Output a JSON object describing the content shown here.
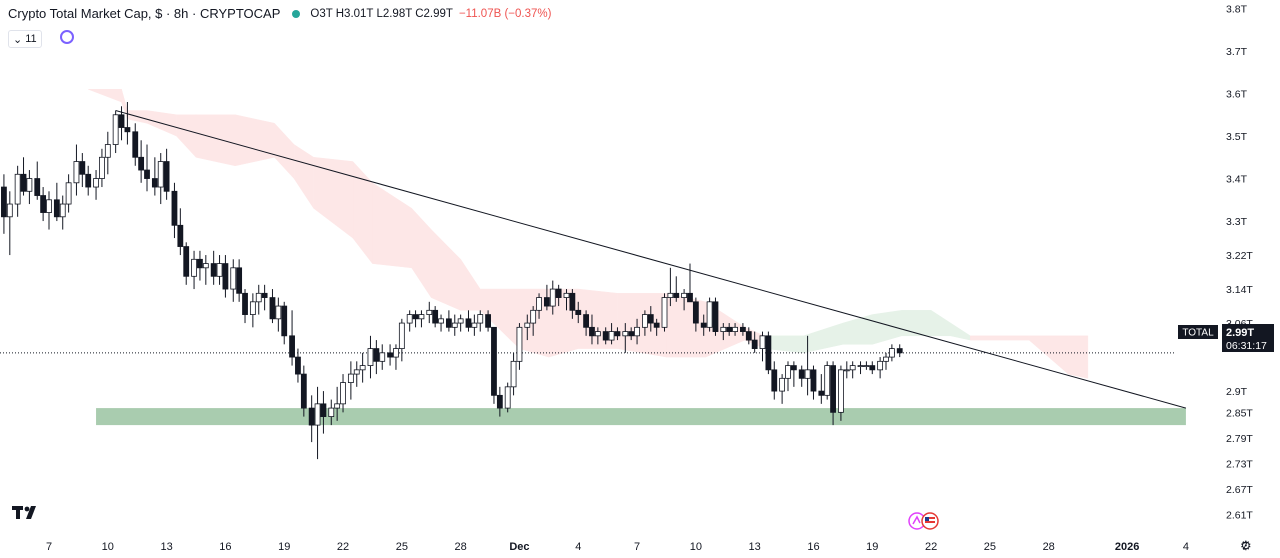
{
  "header": {
    "title": "Crypto Total Market Cap, $ · 8h · CRYPTOCAP",
    "ohlc": "O3T H3.01T L2.98T C2.99T",
    "change": "−11.07B (−0.37%)",
    "indicator_count": "11"
  },
  "price_box": {
    "symbol": "TOTAL",
    "price": "2.99T",
    "countdown": "06:31:17"
  },
  "icons": {
    "sync": "sync-circle-icon",
    "chevron": "chevron-down-icon",
    "logo": "tradingview-logo-icon",
    "settings": "gear-icon",
    "events": "flag-event-icon"
  },
  "colors": {
    "up": "#ffffff",
    "down": "#131722",
    "cloud_bear": "#fde7e7",
    "cloud_bull": "#e6f2e8",
    "support_zone": "#a9ccaf",
    "trendline": "#131722"
  },
  "chart_data": {
    "type": "candlestick",
    "title": "Crypto Total Market Cap",
    "ylabel": "",
    "xlabel": "",
    "y_ticks": [
      "3.8T",
      "3.7T",
      "3.6T",
      "3.5T",
      "3.4T",
      "3.3T",
      "3.22T",
      "3.14T",
      "3.06T",
      "2.9T",
      "2.85T",
      "2.79T",
      "2.73T",
      "2.67T",
      "2.61T"
    ],
    "y_tick_values": [
      3.8,
      3.7,
      3.6,
      3.5,
      3.4,
      3.3,
      3.22,
      3.14,
      3.06,
      2.9,
      2.85,
      2.79,
      2.73,
      2.67,
      2.61
    ],
    "x_ticks": [
      "7",
      "10",
      "13",
      "16",
      "19",
      "22",
      "25",
      "28",
      "Dec",
      "4",
      "7",
      "10",
      "13",
      "16",
      "19",
      "22",
      "25",
      "28",
      "2026",
      "4",
      "7"
    ],
    "x_tick_days": [
      -24,
      -21,
      -18,
      -15,
      -12,
      -9,
      -6,
      -3,
      0,
      3,
      6,
      9,
      12,
      15,
      18,
      21,
      24,
      27,
      31,
      34,
      37
    ],
    "ylim": [
      2.585,
      3.82
    ],
    "xlim": [
      -26.5,
      38.8
    ],
    "candles": [
      [
        -26.3,
        3.38,
        3.41,
        3.27,
        3.31
      ],
      [
        -26.0,
        3.31,
        3.37,
        3.22,
        3.34
      ],
      [
        -25.6,
        3.34,
        3.43,
        3.31,
        3.41
      ],
      [
        -25.3,
        3.41,
        3.45,
        3.36,
        3.37
      ],
      [
        -25.0,
        3.37,
        3.42,
        3.34,
        3.4
      ],
      [
        -24.6,
        3.4,
        3.44,
        3.35,
        3.36
      ],
      [
        -24.3,
        3.36,
        3.38,
        3.3,
        3.32
      ],
      [
        -24.0,
        3.32,
        3.37,
        3.28,
        3.35
      ],
      [
        -23.6,
        3.35,
        3.39,
        3.3,
        3.31
      ],
      [
        -23.3,
        3.31,
        3.36,
        3.28,
        3.34
      ],
      [
        -23.0,
        3.34,
        3.41,
        3.32,
        3.39
      ],
      [
        -22.6,
        3.39,
        3.48,
        3.36,
        3.44
      ],
      [
        -22.3,
        3.44,
        3.46,
        3.38,
        3.41
      ],
      [
        -22.0,
        3.41,
        3.43,
        3.36,
        3.38
      ],
      [
        -21.6,
        3.38,
        3.42,
        3.35,
        3.4
      ],
      [
        -21.3,
        3.4,
        3.47,
        3.38,
        3.45
      ],
      [
        -21.0,
        3.45,
        3.51,
        3.41,
        3.48
      ],
      [
        -20.6,
        3.48,
        3.56,
        3.46,
        3.55
      ],
      [
        -20.3,
        3.55,
        3.57,
        3.49,
        3.52
      ],
      [
        -20.0,
        3.52,
        3.58,
        3.48,
        3.51
      ],
      [
        -19.6,
        3.51,
        3.53,
        3.43,
        3.45
      ],
      [
        -19.3,
        3.45,
        3.49,
        3.39,
        3.42
      ],
      [
        -19.0,
        3.42,
        3.48,
        3.37,
        3.4
      ],
      [
        -18.6,
        3.4,
        3.45,
        3.36,
        3.38
      ],
      [
        -18.3,
        3.38,
        3.46,
        3.34,
        3.44
      ],
      [
        -18.0,
        3.44,
        3.47,
        3.35,
        3.37
      ],
      [
        -17.6,
        3.37,
        3.39,
        3.26,
        3.29
      ],
      [
        -17.3,
        3.29,
        3.33,
        3.22,
        3.24
      ],
      [
        -17.0,
        3.24,
        3.25,
        3.15,
        3.17
      ],
      [
        -16.6,
        3.17,
        3.23,
        3.14,
        3.21
      ],
      [
        -16.3,
        3.21,
        3.23,
        3.16,
        3.19
      ],
      [
        -16.0,
        3.19,
        3.22,
        3.15,
        3.2
      ],
      [
        -15.6,
        3.2,
        3.23,
        3.15,
        3.17
      ],
      [
        -15.3,
        3.17,
        3.22,
        3.15,
        3.2
      ],
      [
        -15.0,
        3.2,
        3.22,
        3.12,
        3.14
      ],
      [
        -14.6,
        3.14,
        3.21,
        3.11,
        3.19
      ],
      [
        -14.3,
        3.19,
        3.21,
        3.11,
        3.13
      ],
      [
        -14.0,
        3.13,
        3.14,
        3.06,
        3.08
      ],
      [
        -13.6,
        3.08,
        3.13,
        3.05,
        3.11
      ],
      [
        -13.3,
        3.11,
        3.15,
        3.08,
        3.13
      ],
      [
        -13.0,
        3.13,
        3.15,
        3.09,
        3.12
      ],
      [
        -12.6,
        3.12,
        3.14,
        3.06,
        3.07
      ],
      [
        -12.3,
        3.07,
        3.12,
        3.04,
        3.1
      ],
      [
        -12.0,
        3.1,
        3.11,
        3.01,
        3.03
      ],
      [
        -11.6,
        3.03,
        3.09,
        2.96,
        2.98
      ],
      [
        -11.3,
        2.98,
        3.0,
        2.92,
        2.94
      ],
      [
        -11.0,
        2.94,
        2.96,
        2.84,
        2.86
      ],
      [
        -10.6,
        2.86,
        2.89,
        2.78,
        2.82
      ],
      [
        -10.3,
        2.82,
        2.91,
        2.74,
        2.87
      ],
      [
        -10.0,
        2.87,
        2.9,
        2.8,
        2.84
      ],
      [
        -9.6,
        2.84,
        2.88,
        2.82,
        2.86
      ],
      [
        -9.3,
        2.86,
        2.91,
        2.83,
        2.87
      ],
      [
        -9.0,
        2.87,
        2.94,
        2.85,
        2.92
      ],
      [
        -8.6,
        2.92,
        2.97,
        2.88,
        2.94
      ],
      [
        -8.3,
        2.94,
        2.97,
        2.91,
        2.95
      ],
      [
        -8.0,
        2.95,
        2.99,
        2.92,
        2.96
      ],
      [
        -7.6,
        2.96,
        3.03,
        2.93,
        3.0
      ],
      [
        -7.3,
        3.0,
        3.02,
        2.94,
        2.97
      ],
      [
        -7.0,
        2.97,
        3.01,
        2.95,
        2.99
      ],
      [
        -6.6,
        2.99,
        3.01,
        2.96,
        2.98
      ],
      [
        -6.3,
        2.98,
        3.01,
        2.95,
        3.0
      ],
      [
        -6.0,
        3.0,
        3.07,
        2.97,
        3.06
      ],
      [
        -5.6,
        3.06,
        3.09,
        3.04,
        3.08
      ],
      [
        -5.3,
        3.08,
        3.09,
        3.05,
        3.07
      ],
      [
        -5.0,
        3.07,
        3.09,
        3.05,
        3.08
      ],
      [
        -4.6,
        3.08,
        3.11,
        3.06,
        3.09
      ],
      [
        -4.3,
        3.09,
        3.1,
        3.05,
        3.06
      ],
      [
        -4.0,
        3.06,
        3.08,
        3.04,
        3.07
      ],
      [
        -3.6,
        3.07,
        3.09,
        3.04,
        3.05
      ],
      [
        -3.3,
        3.05,
        3.08,
        3.03,
        3.06
      ],
      [
        -3.0,
        3.06,
        3.08,
        3.04,
        3.07
      ],
      [
        -2.6,
        3.07,
        3.09,
        3.04,
        3.05
      ],
      [
        -2.3,
        3.05,
        3.08,
        3.03,
        3.06
      ],
      [
        -2.0,
        3.06,
        3.09,
        3.04,
        3.08
      ],
      [
        -1.6,
        3.08,
        3.09,
        3.04,
        3.05
      ],
      [
        -1.3,
        3.05,
        3.05,
        2.87,
        2.89
      ],
      [
        -1.0,
        2.89,
        2.91,
        2.84,
        2.86
      ],
      [
        -0.6,
        2.86,
        2.92,
        2.85,
        2.91
      ],
      [
        -0.3,
        2.91,
        2.99,
        2.89,
        2.97
      ],
      [
        0.0,
        2.97,
        3.06,
        2.95,
        3.05
      ],
      [
        0.4,
        3.05,
        3.08,
        3.02,
        3.06
      ],
      [
        0.7,
        3.06,
        3.1,
        3.03,
        3.09
      ],
      [
        1.0,
        3.09,
        3.13,
        3.07,
        3.12
      ],
      [
        1.4,
        3.12,
        3.15,
        3.09,
        3.1
      ],
      [
        1.7,
        3.1,
        3.16,
        3.08,
        3.14
      ],
      [
        2.0,
        3.14,
        3.15,
        3.1,
        3.12
      ],
      [
        2.4,
        3.12,
        3.14,
        3.09,
        3.13
      ],
      [
        2.7,
        3.13,
        3.14,
        3.07,
        3.09
      ],
      [
        3.0,
        3.09,
        3.11,
        3.06,
        3.08
      ],
      [
        3.4,
        3.08,
        3.09,
        3.03,
        3.05
      ],
      [
        3.7,
        3.05,
        3.08,
        3.01,
        3.03
      ],
      [
        4.0,
        3.03,
        3.05,
        3.01,
        3.04
      ],
      [
        4.4,
        3.04,
        3.05,
        3.01,
        3.02
      ],
      [
        4.7,
        3.02,
        3.06,
        3.01,
        3.04
      ],
      [
        5.0,
        3.04,
        3.05,
        3.02,
        3.03
      ],
      [
        5.4,
        3.03,
        3.06,
        2.99,
        3.04
      ],
      [
        5.7,
        3.04,
        3.05,
        3.02,
        3.03
      ],
      [
        6.0,
        3.03,
        3.07,
        3.01,
        3.05
      ],
      [
        6.4,
        3.05,
        3.09,
        3.03,
        3.08
      ],
      [
        6.7,
        3.08,
        3.1,
        3.04,
        3.06
      ],
      [
        7.0,
        3.06,
        3.07,
        3.03,
        3.05
      ],
      [
        7.4,
        3.05,
        3.13,
        3.04,
        3.12
      ],
      [
        7.7,
        3.12,
        3.19,
        3.1,
        3.13
      ],
      [
        8.0,
        3.13,
        3.17,
        3.11,
        3.12
      ],
      [
        8.4,
        3.12,
        3.14,
        3.09,
        3.13
      ],
      [
        8.7,
        3.13,
        3.2,
        3.11,
        3.11
      ],
      [
        9.0,
        3.11,
        3.12,
        3.04,
        3.06
      ],
      [
        9.4,
        3.06,
        3.08,
        3.03,
        3.05
      ],
      [
        9.7,
        3.05,
        3.12,
        3.04,
        3.11
      ],
      [
        10.0,
        3.11,
        3.12,
        3.03,
        3.04
      ],
      [
        10.4,
        3.04,
        3.06,
        3.02,
        3.05
      ],
      [
        10.7,
        3.05,
        3.06,
        3.03,
        3.04
      ],
      [
        11.0,
        3.04,
        3.06,
        3.03,
        3.05
      ],
      [
        11.4,
        3.05,
        3.06,
        3.03,
        3.04
      ],
      [
        11.7,
        3.04,
        3.05,
        3.01,
        3.02
      ],
      [
        12.0,
        3.02,
        3.04,
        2.99,
        3.0
      ],
      [
        12.4,
        3.0,
        3.04,
        2.97,
        3.03
      ],
      [
        12.7,
        3.03,
        3.04,
        2.94,
        2.95
      ],
      [
        13.0,
        2.95,
        2.97,
        2.88,
        2.9
      ],
      [
        13.4,
        2.9,
        2.94,
        2.87,
        2.93
      ],
      [
        13.7,
        2.93,
        2.97,
        2.9,
        2.96
      ],
      [
        14.0,
        2.96,
        2.97,
        2.91,
        2.95
      ],
      [
        14.4,
        2.95,
        2.96,
        2.91,
        2.93
      ],
      [
        14.7,
        2.93,
        3.03,
        2.89,
        2.95
      ],
      [
        15.0,
        2.95,
        2.96,
        2.88,
        2.9
      ],
      [
        15.4,
        2.9,
        2.94,
        2.87,
        2.89
      ],
      [
        15.7,
        2.89,
        2.97,
        2.88,
        2.96
      ],
      [
        16.0,
        2.96,
        2.97,
        2.82,
        2.85
      ],
      [
        16.4,
        2.85,
        2.96,
        2.83,
        2.95
      ],
      [
        16.7,
        2.95,
        2.97,
        2.93,
        2.95
      ],
      [
        17.0,
        2.95,
        2.97,
        2.93,
        2.96
      ],
      [
        17.4,
        2.96,
        2.97,
        2.94,
        2.96
      ],
      [
        17.7,
        2.96,
        2.97,
        2.95,
        2.96
      ],
      [
        18.0,
        2.96,
        2.97,
        2.94,
        2.95
      ],
      [
        18.4,
        2.95,
        2.98,
        2.93,
        2.97
      ],
      [
        18.7,
        2.97,
        2.99,
        2.95,
        2.98
      ],
      [
        19.0,
        2.98,
        3.01,
        2.97,
        3.0
      ],
      [
        19.4,
        3.0,
        3.01,
        2.98,
        2.99
      ]
    ],
    "ichimoku_cloud": [
      [
        -22.0,
        3.61,
        3.61,
        "bear"
      ],
      [
        -20.3,
        3.61,
        3.58,
        "bear"
      ],
      [
        -20.0,
        3.56,
        3.54,
        "bear"
      ],
      [
        -19.0,
        3.56,
        3.53,
        "bear"
      ],
      [
        -17.5,
        3.55,
        3.5,
        "bear"
      ],
      [
        -16.5,
        3.55,
        3.45,
        "bear"
      ],
      [
        -14.5,
        3.55,
        3.43,
        "bear"
      ],
      [
        -12.5,
        3.53,
        3.45,
        "bear"
      ],
      [
        -11.5,
        3.48,
        3.4,
        "bear"
      ],
      [
        -10.5,
        3.45,
        3.33,
        "bear"
      ],
      [
        -8.5,
        3.44,
        3.26,
        "bear"
      ],
      [
        -7.5,
        3.39,
        3.2,
        "bear"
      ],
      [
        -5.5,
        3.33,
        3.19,
        "bear"
      ],
      [
        -4.5,
        3.28,
        3.12,
        "bear"
      ],
      [
        -3.0,
        3.21,
        3.09,
        "bear"
      ],
      [
        -2.0,
        3.14,
        3.09,
        "bear"
      ],
      [
        0.0,
        3.14,
        3.0,
        "bear"
      ],
      [
        1.5,
        3.14,
        2.98,
        "bear"
      ],
      [
        3.0,
        3.14,
        3.0,
        "bear"
      ],
      [
        5.0,
        3.13,
        3.0,
        "bear"
      ],
      [
        7.5,
        3.13,
        2.98,
        "bear"
      ],
      [
        9.5,
        3.11,
        2.98,
        "bear"
      ],
      [
        11.5,
        3.05,
        3.02,
        "bear"
      ],
      [
        12.5,
        3.03,
        3.0,
        "bull"
      ],
      [
        14.5,
        3.03,
        2.99,
        "bull"
      ],
      [
        16.5,
        3.06,
        3.01,
        "bull"
      ],
      [
        18.0,
        3.08,
        3.01,
        "bull"
      ],
      [
        19.5,
        3.09,
        3.03,
        "bull"
      ],
      [
        21.0,
        3.09,
        3.03,
        "bull"
      ],
      [
        22.0,
        3.06,
        3.03,
        "bull"
      ],
      [
        23.0,
        3.03,
        3.02,
        "bear"
      ],
      [
        26.0,
        3.03,
        3.02,
        "bear"
      ],
      [
        28.0,
        3.03,
        2.94,
        "bear"
      ],
      [
        29.0,
        3.03,
        2.93,
        "bear"
      ]
    ],
    "trendline": {
      "from": [
        -20.6,
        3.56
      ],
      "to": [
        34.0,
        2.86
      ]
    },
    "support_zone": {
      "x_from": -21.6,
      "x_to": 34.0,
      "y_from": 2.82,
      "y_to": 2.86
    },
    "last_price_line": 2.99,
    "grid": false
  }
}
